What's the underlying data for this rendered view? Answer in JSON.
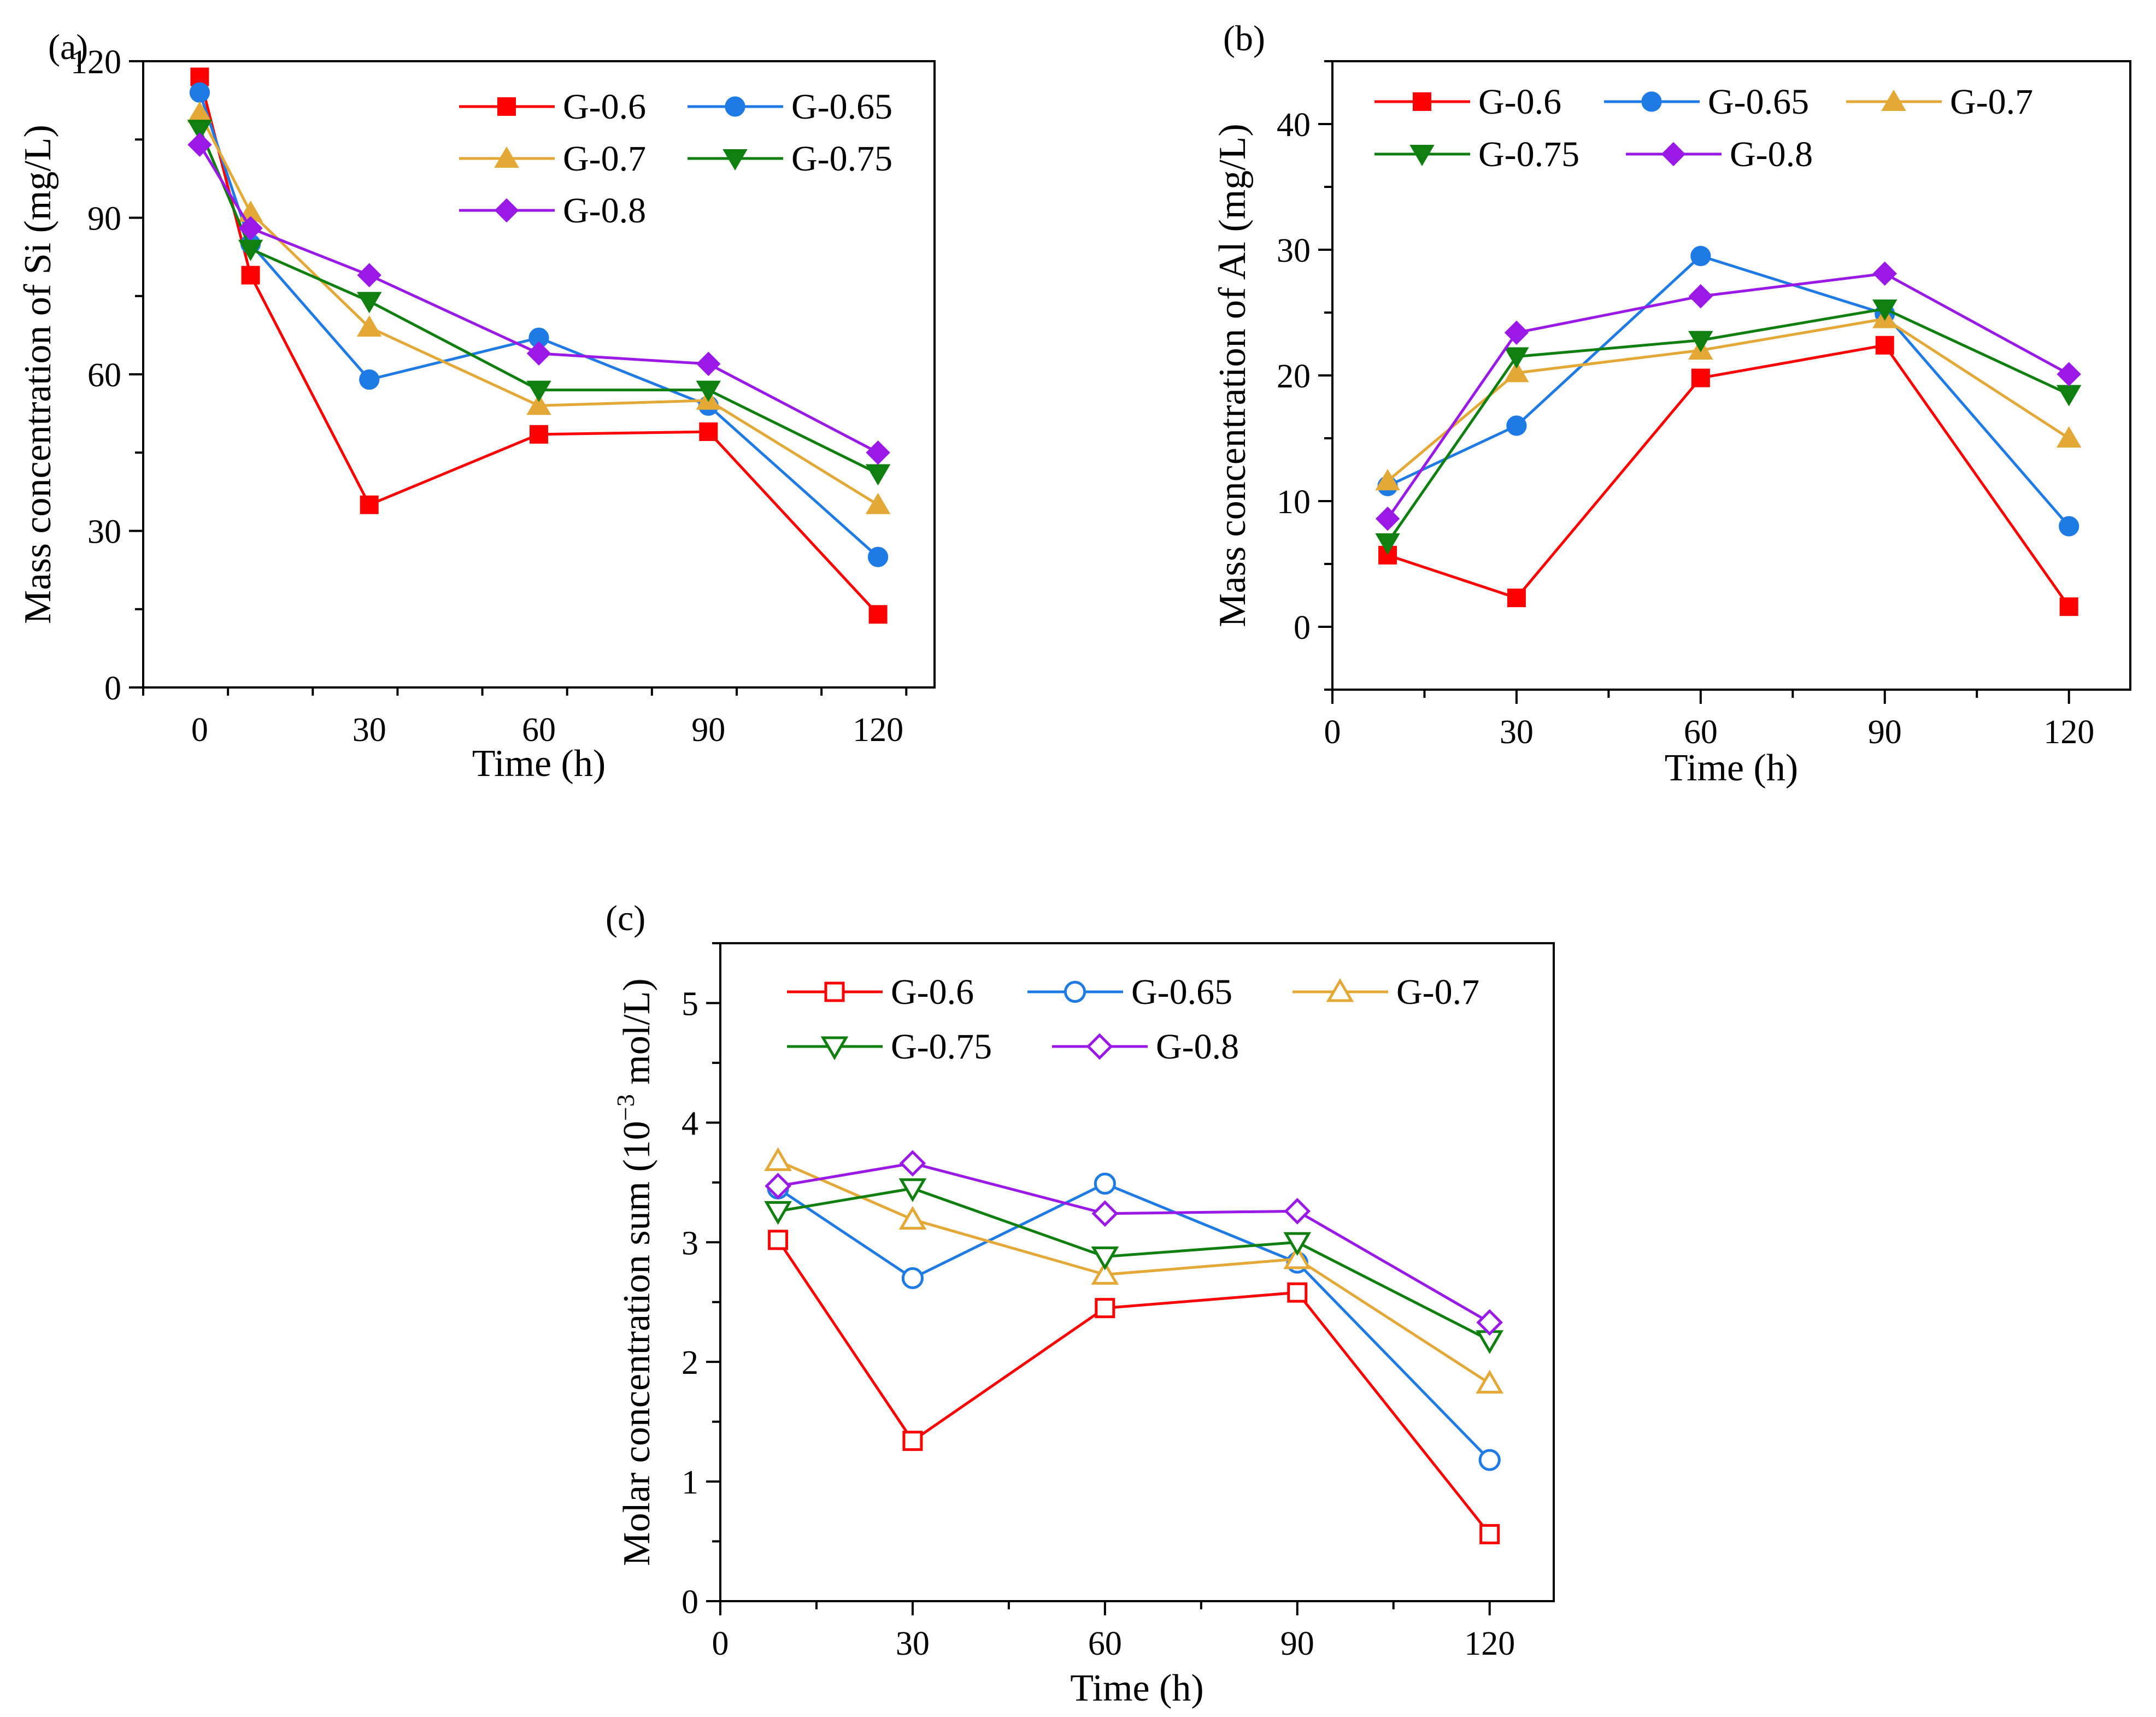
{
  "chart_data": [
    {
      "id": "a",
      "type": "line",
      "panel_label": "(a)",
      "xlabel": "Time (h)",
      "ylabel": "Mass concentration of Si (mg/L)",
      "xlim": [
        -10,
        130
      ],
      "ylim": [
        0,
        120
      ],
      "xticks": [
        0,
        30,
        60,
        90,
        120
      ],
      "yticks": [
        0,
        30,
        60,
        90,
        120
      ],
      "x": [
        0,
        9,
        30,
        60,
        90,
        120
      ],
      "marker_fill": "filled",
      "series": [
        {
          "name": "G-0.6",
          "color": "#ff0000",
          "marker": "square",
          "values": [
            117,
            79,
            35,
            48.5,
            49,
            14
          ]
        },
        {
          "name": "G-0.65",
          "color": "#1e7be5",
          "marker": "circle",
          "values": [
            114,
            85,
            59,
            67,
            54,
            25
          ]
        },
        {
          "name": "G-0.7",
          "color": "#e3a835",
          "marker": "triangle-up",
          "values": [
            110,
            91,
            69,
            54,
            55,
            35
          ]
        },
        {
          "name": "G-0.75",
          "color": "#0f7f0f",
          "marker": "triangle-down",
          "values": [
            107,
            84,
            74,
            57,
            57,
            41
          ]
        },
        {
          "name": "G-0.8",
          "color": "#9b19e6",
          "marker": "diamond",
          "values": [
            104,
            88,
            79,
            64,
            62,
            45
          ]
        }
      ]
    },
    {
      "id": "b",
      "type": "line",
      "panel_label": "(b)",
      "xlabel": "Time (h)",
      "ylabel": "Mass concentration of Al (mg/L)",
      "xlim": [
        0,
        130
      ],
      "ylim": [
        -5,
        45
      ],
      "xticks": [
        0,
        30,
        60,
        90,
        120
      ],
      "yticks": [
        0,
        10,
        20,
        30,
        40
      ],
      "x": [
        9,
        30,
        60,
        90,
        120
      ],
      "marker_fill": "filled",
      "series": [
        {
          "name": "G-0.6",
          "color": "#ff0000",
          "marker": "square",
          "values": [
            5.7,
            2.3,
            19.8,
            22.4,
            1.6
          ]
        },
        {
          "name": "G-0.65",
          "color": "#1e7be5",
          "marker": "circle",
          "values": [
            11.2,
            16,
            29.5,
            24.9,
            8
          ]
        },
        {
          "name": "G-0.7",
          "color": "#e3a835",
          "marker": "triangle-up",
          "values": [
            11.6,
            20.2,
            22,
            24.5,
            15
          ]
        },
        {
          "name": "G-0.75",
          "color": "#0f7f0f",
          "marker": "triangle-down",
          "values": [
            6.7,
            21.5,
            22.8,
            25.3,
            18.5
          ]
        },
        {
          "name": "G-0.8",
          "color": "#9b19e6",
          "marker": "diamond",
          "values": [
            8.6,
            23.4,
            26.3,
            28.1,
            20.1
          ]
        }
      ]
    },
    {
      "id": "c",
      "type": "line",
      "panel_label": "(c)",
      "xlabel": "Time (h)",
      "ylabel": "Molar concentration sum (10",
      "ylabel_sup": "−3",
      "ylabel_tail": " mol/L)",
      "xlim": [
        0,
        130
      ],
      "ylim": [
        0,
        5.5
      ],
      "xticks": [
        0,
        30,
        60,
        90,
        120
      ],
      "yticks": [
        0,
        1,
        2,
        3,
        4,
        5
      ],
      "x": [
        9,
        30,
        60,
        90,
        120
      ],
      "marker_fill": "open",
      "series": [
        {
          "name": "G-0.6",
          "color": "#ff0000",
          "marker": "square",
          "values": [
            3.02,
            1.34,
            2.45,
            2.58,
            0.56
          ]
        },
        {
          "name": "G-0.65",
          "color": "#1e7be5",
          "marker": "circle",
          "values": [
            3.45,
            2.7,
            3.49,
            2.83,
            1.18
          ]
        },
        {
          "name": "G-0.7",
          "color": "#e3a835",
          "marker": "triangle-up",
          "values": [
            3.68,
            3.19,
            2.73,
            2.86,
            1.82
          ]
        },
        {
          "name": "G-0.75",
          "color": "#0f7f0f",
          "marker": "triangle-down",
          "values": [
            3.26,
            3.45,
            2.88,
            3.0,
            2.18
          ]
        },
        {
          "name": "G-0.8",
          "color": "#9b19e6",
          "marker": "diamond",
          "values": [
            3.47,
            3.66,
            3.24,
            3.26,
            2.33
          ]
        }
      ]
    }
  ]
}
